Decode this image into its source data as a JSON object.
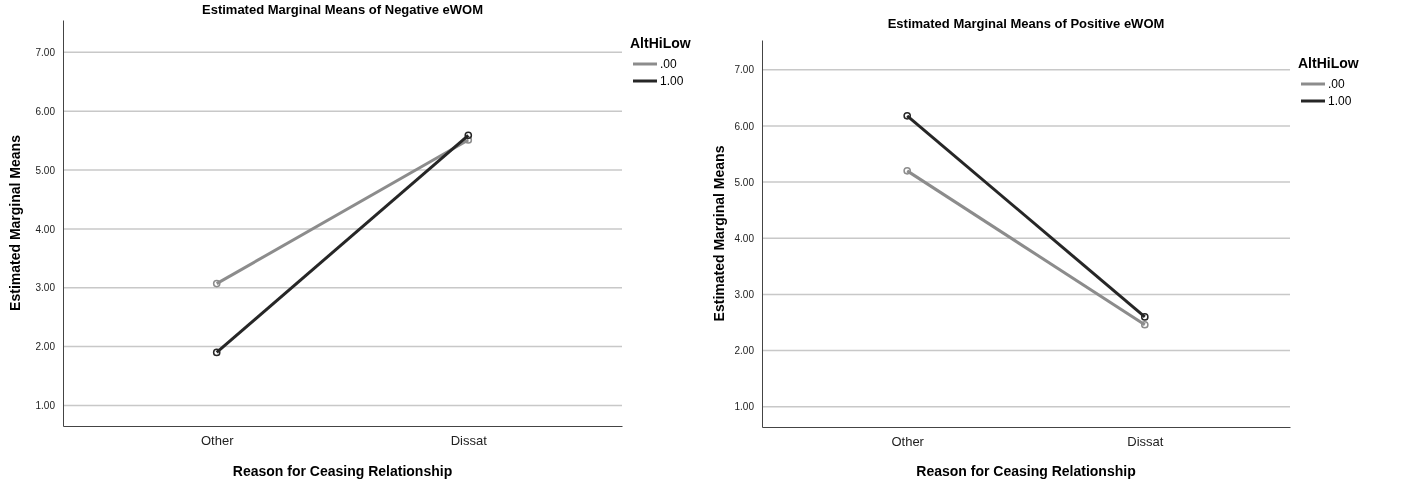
{
  "chart_data": [
    {
      "type": "line",
      "title": "Estimated Marginal Means of Negative eWOM",
      "xlabel": "Reason for Ceasing Relationship",
      "ylabel": "Estimated Marginal Means",
      "legend_title": "AltHiLow",
      "categories": [
        "Other",
        "Dissat"
      ],
      "series": [
        {
          "name": ".00",
          "color": "#8c8c8c",
          "values": [
            3.07,
            5.51
          ]
        },
        {
          "name": "1.00",
          "color": "#262626",
          "values": [
            1.9,
            5.59
          ]
        }
      ],
      "ylim": [
        0.65,
        7.55
      ],
      "yticks": [
        {
          "value": 1,
          "label": "1.00"
        },
        {
          "value": 2,
          "label": "2.00"
        },
        {
          "value": 3,
          "label": "3.00"
        },
        {
          "value": 4,
          "label": "4.00"
        },
        {
          "value": 5,
          "label": "5.00"
        },
        {
          "value": 6,
          "label": "6.00"
        },
        {
          "value": 7,
          "label": "7.00"
        }
      ],
      "grid": "y",
      "legend": "top right",
      "marker": "circle",
      "line_style": "solid"
    },
    {
      "type": "line",
      "title": "Estimated Marginal Means of Positive eWOM",
      "xlabel": "Reason for Ceasing Relationship",
      "ylabel": "Estimated Marginal Means",
      "legend_title": "AltHiLow",
      "categories": [
        "Other",
        "Dissat"
      ],
      "series": [
        {
          "name": ".00",
          "color": "#8c8c8c",
          "values": [
            5.2,
            2.46
          ]
        },
        {
          "name": "1.00",
          "color": "#262626",
          "values": [
            6.18,
            2.6
          ]
        }
      ],
      "ylim": [
        0.64,
        7.53
      ],
      "yticks": [
        {
          "value": 1,
          "label": "1.00"
        },
        {
          "value": 2,
          "label": "2.00"
        },
        {
          "value": 3,
          "label": "3.00"
        },
        {
          "value": 4,
          "label": "4.00"
        },
        {
          "value": 5,
          "label": "5.00"
        },
        {
          "value": 6,
          "label": "6.00"
        },
        {
          "value": 7,
          "label": "7.00"
        }
      ],
      "grid": "y",
      "legend": "top right",
      "marker": "circle",
      "line_style": "solid"
    }
  ]
}
